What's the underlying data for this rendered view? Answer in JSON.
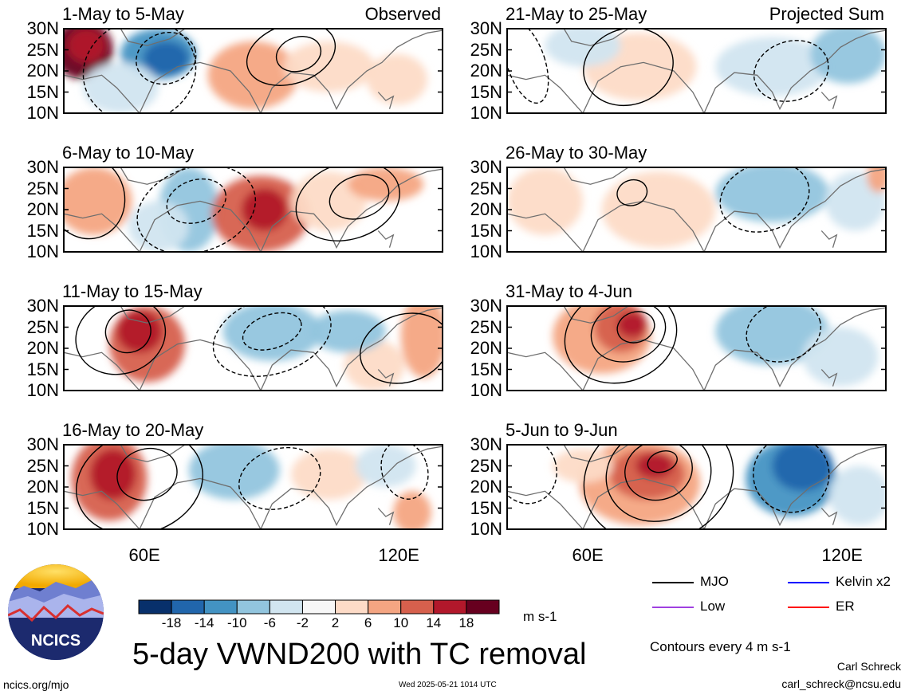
{
  "title": "5-day VWND200 with TC removal",
  "units": "m s-1",
  "columns": [
    {
      "tag": "Observed",
      "panels": [
        "1-May to 5-May",
        "6-May to 10-May",
        "11-May to 15-May",
        "16-May to 20-May"
      ]
    },
    {
      "tag": "Projected Sum",
      "panels": [
        "21-May to 25-May",
        "26-May to 30-May",
        "31-May to 4-Jun",
        "5-Jun to 9-Jun"
      ]
    }
  ],
  "lat_labels": [
    "30N",
    "25N",
    "20N",
    "15N",
    "10N"
  ],
  "lon_labels": [
    "60E",
    "120E"
  ],
  "colorbar": {
    "labels": [
      "-18",
      "-14",
      "-10",
      "-6",
      "-2",
      "2",
      "6",
      "10",
      "14",
      "18"
    ],
    "colors": [
      "#08306b",
      "#2166ac",
      "#4393c3",
      "#92c5de",
      "#d1e5f0",
      "#f7f7f7",
      "#fddbc7",
      "#f4a582",
      "#d6604d",
      "#b2182b",
      "#67001f"
    ]
  },
  "legend": {
    "items": [
      {
        "label": "MJO",
        "color": "#000000"
      },
      {
        "label": "Kelvin x2",
        "color": "#0000ff"
      },
      {
        "label": "Low",
        "color": "#a040e0"
      },
      {
        "label": "ER",
        "color": "#ff0000"
      }
    ],
    "note": "Contours every 4 m s-1"
  },
  "footer": {
    "logo_text": "NCICS",
    "site": "ncics.org/mjo",
    "timestamp": "Wed 2025-05-21 1014 UTC",
    "author": "Carl Schreck",
    "email": "carl_schreck@ncsu.edu"
  }
}
